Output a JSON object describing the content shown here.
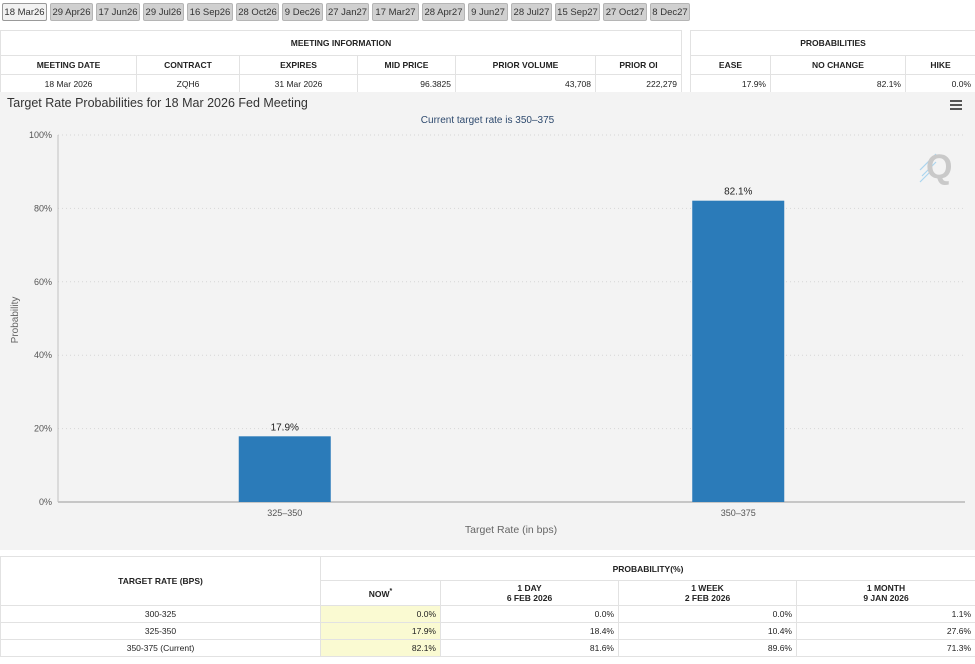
{
  "tabs": [
    "18 Mar26",
    "29 Apr26",
    "17 Jun26",
    "29 Jul26",
    "16 Sep26",
    "28 Oct26",
    "9 Dec26",
    "27 Jan27",
    "17 Mar27",
    "28 Apr27",
    "9 Jun27",
    "28 Jul27",
    "15 Sep27",
    "27 Oct27",
    "8 Dec27"
  ],
  "meeting_info": {
    "group_header": "MEETING INFORMATION",
    "headers": [
      "MEETING DATE",
      "CONTRACT",
      "EXPIRES",
      "MID PRICE",
      "PRIOR VOLUME",
      "PRIOR OI"
    ],
    "row": [
      "18 Mar 2026",
      "ZQH6",
      "31 Mar 2026",
      "96.3825",
      "43,708",
      "222,279"
    ]
  },
  "probabilities": {
    "group_header": "PROBABILITIES",
    "headers": [
      "EASE",
      "NO CHANGE",
      "HIKE"
    ],
    "row": [
      "17.9%",
      "82.1%",
      "0.0%"
    ]
  },
  "chart_data": {
    "type": "bar",
    "title": "Target Rate Probabilities for 18 Mar 2026 Fed Meeting",
    "subtitle": "Current target rate is 350–375",
    "categories": [
      "325–350",
      "350–375"
    ],
    "values": [
      17.9,
      82.1
    ],
    "data_labels": [
      "17.9%",
      "82.1%"
    ],
    "xlabel": "Target Rate (in bps)",
    "ylabel": "Probability",
    "ylim": [
      0,
      100
    ],
    "yticks": [
      "0%",
      "20%",
      "40%",
      "60%",
      "80%",
      "100%"
    ],
    "grid": true,
    "bar_color": "#2b7bb9"
  },
  "bottom": {
    "target_rate_header": "TARGET RATE (BPS)",
    "prob_header": "PROBABILITY(%)",
    "now": "NOW",
    "now_mark": "*",
    "cols": [
      {
        "l1": "1 DAY",
        "l2": "6 FEB 2026"
      },
      {
        "l1": "1 WEEK",
        "l2": "2 FEB 2026"
      },
      {
        "l1": "1 MONTH",
        "l2": "9 JAN 2026"
      }
    ],
    "rows": [
      {
        "rate": "300-325",
        "now": "0.0%",
        "d1": "0.0%",
        "w1": "0.0%",
        "m1": "1.1%"
      },
      {
        "rate": "325-350",
        "now": "17.9%",
        "d1": "18.4%",
        "w1": "10.4%",
        "m1": "27.6%"
      },
      {
        "rate": "350-375 (Current)",
        "now": "82.1%",
        "d1": "81.6%",
        "w1": "89.6%",
        "m1": "71.3%"
      }
    ]
  }
}
